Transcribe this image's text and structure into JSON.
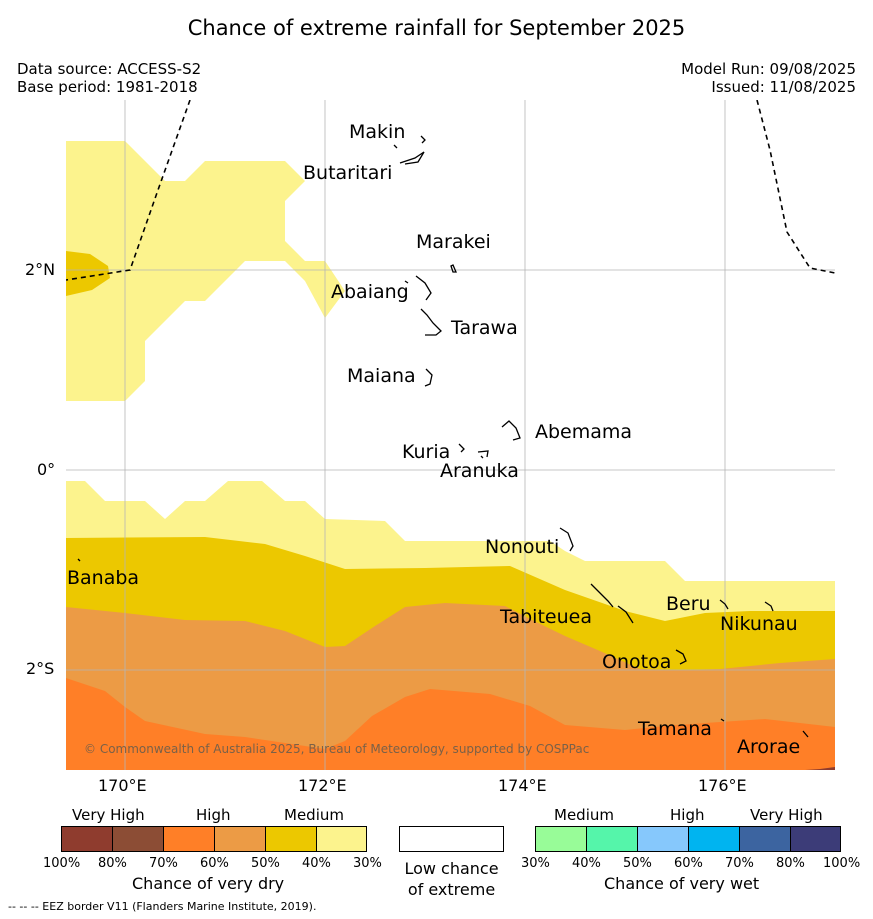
{
  "title": "Chance of extreme rainfall for September 2025",
  "header_left": {
    "source": "Data source: ACCESS-S2",
    "base": "Base period: 1981-2018"
  },
  "header_right": {
    "run": "Model Run: 09/08/2025",
    "issued": "Issued: 11/08/2025"
  },
  "axes": {
    "lat_labels": [
      "2°N",
      "0°",
      "2°S"
    ],
    "lon_labels": [
      "170°E",
      "172°E",
      "174°E",
      "176°E"
    ]
  },
  "islands": [
    "Makin",
    "Butaritari",
    "Marakei",
    "Abaiang",
    "Tarawa",
    "Maiana",
    "Abemama",
    "Kuria",
    "Aranuka",
    "Nonouti",
    "Banaba",
    "Tabiteuea",
    "Beru",
    "Nikunau",
    "Onotoa",
    "Tamana",
    "Arorae"
  ],
  "copyright": "© Commonwealth of Australia 2025, Bureau of Meteorology, supported by COSPPac",
  "colorbar": {
    "dry_groups": [
      "Very High",
      "High",
      "Medium"
    ],
    "dry_ticks": [
      "100%",
      "80%",
      "70%",
      "60%",
      "50%",
      "40%",
      "30%"
    ],
    "dry_caption": "Chance of very dry",
    "low_caption_1": "Low chance",
    "low_caption_2": "of extreme",
    "wet_groups": [
      "Medium",
      "High",
      "Very High"
    ],
    "wet_ticks": [
      "30%",
      "40%",
      "50%",
      "60%",
      "70%",
      "80%",
      "100%"
    ],
    "wet_caption": "Chance of very wet",
    "dry_colors": [
      "#8f3c2e",
      "#8c4d35",
      "#ff7f27",
      "#ec9b45",
      "#ecc800",
      "#fcf38d"
    ],
    "wet_colors": [
      "#98fc98",
      "#55f5aa",
      "#86c8fc",
      "#00b4f0",
      "#3c64a0",
      "#3c3c78"
    ]
  },
  "footer": "--  --  -- EEZ border V11 (Flanders Marine Institute, 2019)."
}
